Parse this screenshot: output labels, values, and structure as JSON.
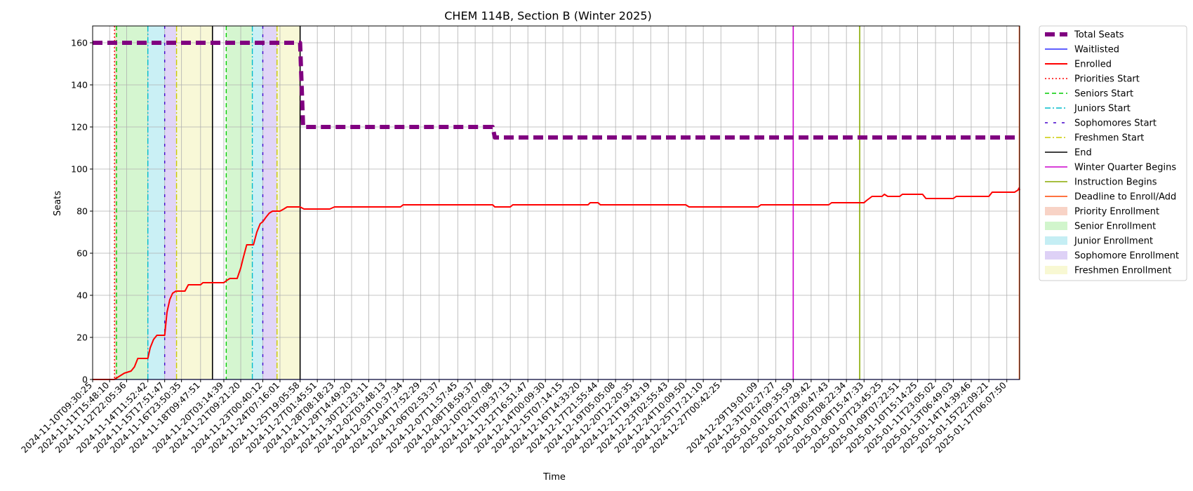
{
  "chart_data": {
    "type": "line",
    "title": "CHEM 114B, Section B (Winter 2025)",
    "xlabel": "Time",
    "ylabel": "Seats",
    "xlim": [
      "2024-11-10T09:30:25",
      "2025-01-18T05:00:00"
    ],
    "ylim": [
      0,
      168
    ],
    "y_ticks": [
      0,
      20,
      40,
      60,
      80,
      100,
      120,
      140,
      160
    ],
    "x_tick_labels": [
      "2024-11-10T09:30:25",
      "2024-11-11T15:48:10",
      "2024-11-12T22:05:36",
      "2024-11-14T11:52:42",
      "2024-11-15T17:51:47",
      "2024-11-16T23:50:35",
      "2024-11-18T09:47:51",
      "2024-11-20T03:14:39",
      "2024-11-21T09:21:20",
      "2024-11-23T00:40:12",
      "2024-11-24T07:16:01",
      "2024-11-25T19:05:58",
      "2024-11-27T01:45:51",
      "2024-11-28T08:18:23",
      "2024-11-29T14:49:20",
      "2024-11-30T21:23:11",
      "2024-12-02T03:48:13",
      "2024-12-03T10:37:34",
      "2024-12-04T17:52:29",
      "2024-12-06T02:53:37",
      "2024-12-07T11:57:45",
      "2024-12-08T18:59:37",
      "2024-12-10T02:07:08",
      "2024-12-11T09:37:13",
      "2024-12-12T16:51:47",
      "2024-12-14T00:09:30",
      "2024-12-15T07:14:15",
      "2024-12-16T14:33:20",
      "2024-12-17T21:55:44",
      "2024-12-19T05:05:08",
      "2024-12-20T12:20:35",
      "2024-12-21T19:43:19",
      "2024-12-23T02:55:43",
      "2024-12-24T10:09:50",
      "2024-12-25T17:21:10",
      "2024-12-27T00:42:25",
      "2024-12-29T19:01:09",
      "2024-12-31T02:27:27",
      "2025-01-01T09:35:59",
      "2025-01-02T17:29:42",
      "2025-01-04T00:47:43",
      "2025-01-05T08:22:34",
      "2025-01-06T15:47:33",
      "2025-01-07T23:45:25",
      "2025-01-09T07:22:51",
      "2025-01-10T15:14:25",
      "2025-01-11T23:05:02",
      "2025-01-13T06:49:03",
      "2025-01-14T14:39:46",
      "2025-01-15T22:09:21",
      "2025-01-17T06:07:50"
    ],
    "grid": true,
    "legend_placement": "outside-right-top",
    "series": [
      {
        "name": "Total Seats",
        "color": "#800080",
        "style": "dashed-thick",
        "points": [
          [
            "2024-11-10T09:30:25",
            160
          ],
          [
            "2024-11-25T19:05:58",
            160
          ],
          [
            "2024-11-26T00:30:00",
            120
          ],
          [
            "2024-12-10T02:07:08",
            120
          ],
          [
            "2024-12-10T06:00:00",
            115
          ],
          [
            "2025-01-18T05:00:00",
            115
          ]
        ]
      },
      {
        "name": "Waitlisted",
        "color": "#0000ff",
        "style": "solid-thin",
        "points": [
          [
            "2024-11-10T09:30:25",
            0
          ],
          [
            "2025-01-18T05:00:00",
            0
          ]
        ]
      },
      {
        "name": "Enrolled",
        "color": "#ff0000",
        "style": "solid",
        "points": [
          [
            "2024-11-10T09:30:25",
            0
          ],
          [
            "2024-11-12T00:00:00",
            0
          ],
          [
            "2024-11-12T06:00:00",
            1
          ],
          [
            "2024-11-12T12:00:00",
            2
          ],
          [
            "2024-11-12T18:00:00",
            3
          ],
          [
            "2024-11-13T06:00:00",
            4
          ],
          [
            "2024-11-13T12:00:00",
            6
          ],
          [
            "2024-11-13T18:00:00",
            10
          ],
          [
            "2024-11-14T11:52:42",
            10
          ],
          [
            "2024-11-14T16:00:00",
            15
          ],
          [
            "2024-11-14T22:00:00",
            19
          ],
          [
            "2024-11-15T04:00:00",
            21
          ],
          [
            "2024-11-15T17:51:47",
            21
          ],
          [
            "2024-11-15T22:00:00",
            32
          ],
          [
            "2024-11-16T03:00:00",
            38
          ],
          [
            "2024-11-16T08:00:00",
            41
          ],
          [
            "2024-11-16T14:00:00",
            42
          ],
          [
            "2024-11-17T06:00:00",
            42
          ],
          [
            "2024-11-17T12:00:00",
            45
          ],
          [
            "2024-11-18T09:47:51",
            45
          ],
          [
            "2024-11-18T14:00:00",
            46
          ],
          [
            "2024-11-20T03:14:39",
            46
          ],
          [
            "2024-11-20T08:00:00",
            47
          ],
          [
            "2024-11-20T14:00:00",
            48
          ],
          [
            "2024-11-21T03:00:00",
            48
          ],
          [
            "2024-11-21T09:21:20",
            53
          ],
          [
            "2024-11-21T14:00:00",
            58
          ],
          [
            "2024-11-21T20:00:00",
            64
          ],
          [
            "2024-11-22T08:00:00",
            64
          ],
          [
            "2024-11-22T14:00:00",
            70
          ],
          [
            "2024-11-22T20:00:00",
            74
          ],
          [
            "2024-11-23T00:40:12",
            75
          ],
          [
            "2024-11-23T06:00:00",
            77
          ],
          [
            "2024-11-23T12:00:00",
            79
          ],
          [
            "2024-11-23T18:00:00",
            80
          ],
          [
            "2024-11-24T07:16:01",
            80
          ],
          [
            "2024-11-24T14:00:00",
            81
          ],
          [
            "2024-11-24T20:00:00",
            82
          ],
          [
            "2024-11-25T19:05:58",
            82
          ],
          [
            "2024-11-26T02:00:00",
            81
          ],
          [
            "2024-11-28T00:00:00",
            81
          ],
          [
            "2024-11-28T08:18:23",
            82
          ],
          [
            "2024-12-03T06:00:00",
            82
          ],
          [
            "2024-12-03T10:37:34",
            83
          ],
          [
            "2024-12-10T02:07:08",
            83
          ],
          [
            "2024-12-10T06:00:00",
            82
          ],
          [
            "2024-12-11T09:37:13",
            82
          ],
          [
            "2024-12-11T14:00:00",
            83
          ],
          [
            "2024-12-17T04:00:00",
            83
          ],
          [
            "2024-12-17T08:00:00",
            84
          ],
          [
            "2024-12-17T21:55:44",
            84
          ],
          [
            "2024-12-18T02:00:00",
            83
          ],
          [
            "2024-12-24T10:09:50",
            83
          ],
          [
            "2024-12-24T16:00:00",
            82
          ],
          [
            "2024-12-29T19:01:09",
            82
          ],
          [
            "2024-12-30T00:00:00",
            83
          ],
          [
            "2025-01-04T00:47:43",
            83
          ],
          [
            "2025-01-04T06:00:00",
            84
          ],
          [
            "2025-01-06T15:47:33",
            84
          ],
          [
            "2025-01-06T20:00:00",
            85
          ],
          [
            "2025-01-07T01:00:00",
            86
          ],
          [
            "2025-01-07T06:00:00",
            87
          ],
          [
            "2025-01-07T23:45:25",
            87
          ],
          [
            "2025-01-08T04:00:00",
            88
          ],
          [
            "2025-01-08T10:00:00",
            87
          ],
          [
            "2025-01-09T07:22:51",
            87
          ],
          [
            "2025-01-09T12:00:00",
            88
          ],
          [
            "2025-01-11T00:00:00",
            88
          ],
          [
            "2025-01-11T06:00:00",
            86
          ],
          [
            "2025-01-13T06:49:03",
            86
          ],
          [
            "2025-01-13T12:00:00",
            87
          ],
          [
            "2025-01-15T22:09:21",
            87
          ],
          [
            "2025-01-16T04:00:00",
            89
          ],
          [
            "2025-01-17T20:00:00",
            89
          ],
          [
            "2025-01-18T02:00:00",
            90
          ],
          [
            "2025-01-18T04:00:00",
            91
          ],
          [
            "2025-01-18T05:00:00",
            90
          ]
        ]
      }
    ],
    "vlines": [
      {
        "name": "Priorities Start",
        "color": "#ff0000",
        "style": "dotted",
        "times": [
          "2024-11-12T00:30:00"
        ]
      },
      {
        "name": "Seniors Start",
        "color": "#00cc00",
        "style": "dashed",
        "times": [
          "2024-11-12T04:00:00",
          "2024-11-20T07:30:00"
        ]
      },
      {
        "name": "Juniors Start",
        "color": "#00bbcc",
        "style": "dashdot",
        "times": [
          "2024-11-14T11:52:42",
          "2024-11-22T06:00:00"
        ]
      },
      {
        "name": "Sophomores Start",
        "color": "#4400cc",
        "style": "sparse",
        "times": [
          "2024-11-15T17:51:47",
          "2024-11-23T00:40:12"
        ]
      },
      {
        "name": "Freshmen Start",
        "color": "#cccc00",
        "style": "dashdot",
        "times": [
          "2024-11-16T15:00:00",
          "2024-11-24T02:00:00"
        ]
      },
      {
        "name": "End",
        "color": "#000000",
        "style": "solid",
        "times": [
          "2024-11-19T07:00:00",
          "2024-11-25T19:05:58"
        ]
      },
      {
        "name": "Winter Quarter Begins",
        "color": "#cc00cc",
        "style": "solid",
        "times": [
          "2025-01-01T09:35:59"
        ]
      },
      {
        "name": "Instruction Begins",
        "color": "#88aa00",
        "style": "solid",
        "times": [
          "2025-01-06T08:00:00"
        ]
      },
      {
        "name": "Deadline to Enroll/Add",
        "color": "#ff4400",
        "style": "solid",
        "times": [
          "2025-01-18T04:30:00"
        ]
      }
    ],
    "spans": [
      {
        "name": "Priority Enrollment",
        "color": "#f4b6a0",
        "ranges": [
          [
            "2024-11-12T00:30:00",
            "2024-11-12T04:00:00"
          ]
        ]
      },
      {
        "name": "Senior Enrollment",
        "color": "#b3eeaa",
        "ranges": [
          [
            "2024-11-12T04:00:00",
            "2024-11-14T11:52:42"
          ],
          [
            "2024-11-20T07:30:00",
            "2024-11-22T06:00:00"
          ]
        ]
      },
      {
        "name": "Junior Enrollment",
        "color": "#9ee3ec",
        "ranges": [
          [
            "2024-11-14T11:52:42",
            "2024-11-15T17:51:47"
          ],
          [
            "2024-11-22T06:00:00",
            "2024-11-23T00:40:12"
          ]
        ]
      },
      {
        "name": "Sophomore Enrollment",
        "color": "#c8b3f0",
        "ranges": [
          [
            "2024-11-15T17:51:47",
            "2024-11-16T15:00:00"
          ],
          [
            "2024-11-23T00:40:12",
            "2024-11-24T02:00:00"
          ]
        ]
      },
      {
        "name": "Freshmen Enrollment",
        "color": "#f3f3b6",
        "ranges": [
          [
            "2024-11-16T15:00:00",
            "2024-11-19T07:00:00"
          ],
          [
            "2024-11-24T02:00:00",
            "2024-11-25T19:05:58"
          ]
        ]
      }
    ],
    "legend": [
      "Total Seats",
      "Waitlisted",
      "Enrolled",
      "Priorities Start",
      "Seniors Start",
      "Juniors Start",
      "Sophomores Start",
      "Freshmen Start",
      "End",
      "Winter Quarter Begins",
      "Instruction Begins",
      "Deadline to Enroll/Add",
      "Priority Enrollment",
      "Senior Enrollment",
      "Junior Enrollment",
      "Sophomore Enrollment",
      "Freshmen Enrollment"
    ]
  }
}
